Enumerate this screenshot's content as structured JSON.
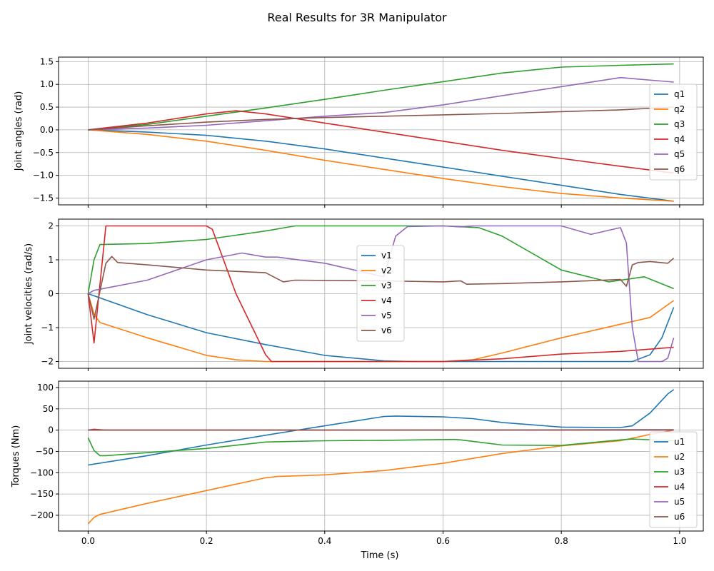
{
  "figure": {
    "title": "Real Results for 3R Manipulator",
    "xlabel": "Time (s)"
  },
  "colors": {
    "c1": "#1f77b4",
    "c2": "#ff7f0e",
    "c3": "#2ca02c",
    "c4": "#d62728",
    "c5": "#9467bd",
    "c6": "#8c564b",
    "grid": "#b0b0b0"
  },
  "chart_data": [
    {
      "type": "line",
      "ylabel": "Joint angles (rad)",
      "xlim": [
        -0.05,
        1.04
      ],
      "ylim": [
        -1.65,
        1.6
      ],
      "xticks": [
        0.0,
        0.2,
        0.4,
        0.6,
        0.8,
        1.0
      ],
      "xtick_labels": [
        "0.0",
        "0.2",
        "0.4",
        "0.6",
        "0.8",
        "1.0"
      ],
      "show_xtick_labels": false,
      "yticks": [
        -1.5,
        -1.0,
        -0.5,
        0.0,
        0.5,
        1.0,
        1.5
      ],
      "ytick_labels": [
        "−1.5",
        "−1.0",
        "−0.5",
        "0.0",
        "0.5",
        "1.0",
        "1.5"
      ],
      "grid": true,
      "legend": "center-right",
      "series": [
        {
          "name": "q1",
          "color_key": "c1",
          "x": [
            0,
            0.1,
            0.2,
            0.3,
            0.4,
            0.5,
            0.6,
            0.7,
            0.8,
            0.9,
            0.99
          ],
          "y": [
            0,
            -0.05,
            -0.12,
            -0.25,
            -0.42,
            -0.62,
            -0.82,
            -1.02,
            -1.22,
            -1.42,
            -1.57
          ]
        },
        {
          "name": "q2",
          "color_key": "c2",
          "x": [
            0,
            0.1,
            0.2,
            0.3,
            0.4,
            0.5,
            0.6,
            0.7,
            0.8,
            0.9,
            0.99
          ],
          "y": [
            0,
            -0.1,
            -0.25,
            -0.45,
            -0.67,
            -0.87,
            -1.07,
            -1.25,
            -1.4,
            -1.5,
            -1.57
          ]
        },
        {
          "name": "q3",
          "color_key": "c3",
          "x": [
            0,
            0.1,
            0.2,
            0.3,
            0.4,
            0.5,
            0.6,
            0.7,
            0.8,
            0.9,
            0.99
          ],
          "y": [
            0,
            0.12,
            0.3,
            0.48,
            0.67,
            0.87,
            1.06,
            1.25,
            1.38,
            1.42,
            1.45
          ]
        },
        {
          "name": "q4",
          "color_key": "c4",
          "x": [
            0,
            0.1,
            0.2,
            0.25,
            0.3,
            0.4,
            0.5,
            0.6,
            0.7,
            0.8,
            0.9,
            0.99
          ],
          "y": [
            0,
            0.15,
            0.35,
            0.42,
            0.35,
            0.15,
            -0.05,
            -0.25,
            -0.45,
            -0.63,
            -0.8,
            -0.95
          ]
        },
        {
          "name": "q5",
          "color_key": "c5",
          "x": [
            0,
            0.1,
            0.2,
            0.3,
            0.4,
            0.5,
            0.6,
            0.7,
            0.8,
            0.9,
            0.99
          ],
          "y": [
            0,
            0.04,
            0.1,
            0.2,
            0.3,
            0.38,
            0.55,
            0.75,
            0.95,
            1.15,
            1.05
          ]
        },
        {
          "name": "q6",
          "color_key": "c6",
          "x": [
            0,
            0.1,
            0.2,
            0.3,
            0.4,
            0.5,
            0.6,
            0.7,
            0.8,
            0.9,
            0.99
          ],
          "y": [
            0,
            0.09,
            0.17,
            0.23,
            0.27,
            0.3,
            0.33,
            0.36,
            0.4,
            0.44,
            0.5
          ]
        }
      ]
    },
    {
      "type": "line",
      "ylabel": "Joint velocities (rad/s)",
      "xlim": [
        -0.05,
        1.04
      ],
      "ylim": [
        -2.2,
        2.2
      ],
      "xticks": [
        0.0,
        0.2,
        0.4,
        0.6,
        0.8,
        1.0
      ],
      "xtick_labels": [
        "0.0",
        "0.2",
        "0.4",
        "0.6",
        "0.8",
        "1.0"
      ],
      "show_xtick_labels": false,
      "yticks": [
        -2,
        -1,
        0,
        1,
        2
      ],
      "ytick_labels": [
        "−2",
        "−1",
        "0",
        "1",
        "2"
      ],
      "grid": true,
      "legend": "center",
      "series": [
        {
          "name": "v1",
          "color_key": "c1",
          "x": [
            0,
            0.1,
            0.2,
            0.3,
            0.4,
            0.5,
            0.55,
            0.6,
            0.7,
            0.8,
            0.9,
            0.92,
            0.95,
            0.97,
            0.99
          ],
          "y": [
            0,
            -0.62,
            -1.15,
            -1.5,
            -1.82,
            -1.98,
            -2,
            -2,
            -2,
            -2,
            -2,
            -2,
            -1.8,
            -1.3,
            -0.4
          ]
        },
        {
          "name": "v2",
          "color_key": "c2",
          "x": [
            0,
            0.01,
            0.02,
            0.1,
            0.2,
            0.25,
            0.3,
            0.5,
            0.6,
            0.65,
            0.7,
            0.8,
            0.9,
            0.95,
            0.99
          ],
          "y": [
            0,
            -0.6,
            -0.85,
            -1.3,
            -1.82,
            -1.95,
            -2,
            -2,
            -2,
            -1.95,
            -1.75,
            -1.3,
            -0.9,
            -0.7,
            -0.2
          ]
        },
        {
          "name": "v3",
          "color_key": "c3",
          "x": [
            0,
            0.01,
            0.02,
            0.1,
            0.2,
            0.3,
            0.35,
            0.5,
            0.6,
            0.66,
            0.7,
            0.8,
            0.88,
            0.94,
            0.99
          ],
          "y": [
            0,
            1.0,
            1.45,
            1.48,
            1.6,
            1.85,
            2,
            2,
            2,
            1.95,
            1.7,
            0.7,
            0.35,
            0.5,
            0.15
          ]
        },
        {
          "name": "v4",
          "color_key": "c4",
          "x": [
            0,
            0.01,
            0.03,
            0.2,
            0.21,
            0.25,
            0.3,
            0.31,
            0.5,
            0.6,
            0.7,
            0.8,
            0.9,
            0.99
          ],
          "y": [
            0,
            -1.45,
            2,
            2,
            1.9,
            0,
            -1.8,
            -2,
            -2,
            -2,
            -1.92,
            -1.78,
            -1.7,
            -1.58
          ]
        },
        {
          "name": "v5",
          "color_key": "c5",
          "x": [
            0,
            0.01,
            0.1,
            0.2,
            0.26,
            0.3,
            0.32,
            0.4,
            0.5,
            0.52,
            0.54,
            0.6,
            0.63,
            0.65,
            0.8,
            0.85,
            0.9,
            0.91,
            0.92,
            0.93,
            0.97,
            0.98,
            0.99
          ],
          "y": [
            0,
            0.1,
            0.4,
            1.0,
            1.2,
            1.08,
            1.08,
            0.9,
            0.5,
            1.7,
            1.98,
            2,
            1.97,
            2,
            2,
            1.75,
            1.95,
            1.5,
            -1.0,
            -2,
            -2,
            -1.9,
            -1.3
          ]
        },
        {
          "name": "v6",
          "color_key": "c6",
          "x": [
            0,
            0.01,
            0.03,
            0.04,
            0.05,
            0.1,
            0.2,
            0.3,
            0.33,
            0.35,
            0.5,
            0.6,
            0.63,
            0.64,
            0.7,
            0.8,
            0.9,
            0.91,
            0.92,
            0.93,
            0.95,
            0.98,
            0.99
          ],
          "y": [
            0,
            -0.75,
            0.9,
            1.1,
            0.92,
            0.85,
            0.7,
            0.62,
            0.35,
            0.4,
            0.38,
            0.35,
            0.38,
            0.28,
            0.3,
            0.35,
            0.42,
            0.22,
            0.85,
            0.92,
            0.95,
            0.9,
            1.05
          ]
        }
      ]
    },
    {
      "type": "line",
      "ylabel": "Torques (Nm)",
      "xlim": [
        -0.05,
        1.04
      ],
      "ylim": [
        -237,
        115
      ],
      "xticks": [
        0.0,
        0.2,
        0.4,
        0.6,
        0.8,
        1.0
      ],
      "xtick_labels": [
        "0.0",
        "0.2",
        "0.4",
        "0.6",
        "0.8",
        "1.0"
      ],
      "show_xtick_labels": true,
      "yticks": [
        -200,
        -150,
        -100,
        -50,
        0,
        50,
        100
      ],
      "ytick_labels": [
        "−200",
        "−150",
        "−100",
        "−50",
        "0",
        "50",
        "100"
      ],
      "grid": true,
      "legend": "center-right",
      "series": [
        {
          "name": "u1",
          "color_key": "c1",
          "x": [
            0,
            0.1,
            0.2,
            0.3,
            0.4,
            0.5,
            0.52,
            0.6,
            0.65,
            0.7,
            0.8,
            0.9,
            0.92,
            0.95,
            0.98,
            0.99
          ],
          "y": [
            -82,
            -60,
            -35,
            -12,
            10,
            32,
            33,
            31,
            27,
            18,
            7,
            6,
            10,
            40,
            85,
            95
          ]
        },
        {
          "name": "u2",
          "color_key": "c2",
          "x": [
            0,
            0.01,
            0.02,
            0.1,
            0.2,
            0.3,
            0.32,
            0.4,
            0.5,
            0.6,
            0.7,
            0.8,
            0.9,
            0.95,
            0.99
          ],
          "y": [
            -220,
            -205,
            -198,
            -172,
            -142,
            -112,
            -109,
            -105,
            -95,
            -78,
            -55,
            -37,
            -25,
            -10,
            0
          ]
        },
        {
          "name": "u3",
          "color_key": "c3",
          "x": [
            0,
            0.01,
            0.02,
            0.03,
            0.1,
            0.2,
            0.3,
            0.4,
            0.5,
            0.62,
            0.63,
            0.7,
            0.8,
            0.9,
            0.92,
            0.99
          ],
          "y": [
            -18,
            -48,
            -60,
            -60,
            -53,
            -43,
            -28,
            -25,
            -24,
            -22,
            -23,
            -35,
            -36,
            -23,
            -21,
            -25
          ]
        },
        {
          "name": "u4",
          "color_key": "c4",
          "x": [
            0,
            0.01,
            0.02,
            0.03,
            0.5,
            0.99
          ],
          "y": [
            0,
            2,
            1,
            0,
            0,
            0
          ]
        },
        {
          "name": "u5",
          "color_key": "c5",
          "x": [
            0,
            0.5,
            0.99
          ],
          "y": [
            0,
            0,
            0
          ]
        },
        {
          "name": "u6",
          "color_key": "c6",
          "x": [
            0,
            0.5,
            0.99
          ],
          "y": [
            0,
            0,
            1
          ]
        }
      ]
    }
  ]
}
